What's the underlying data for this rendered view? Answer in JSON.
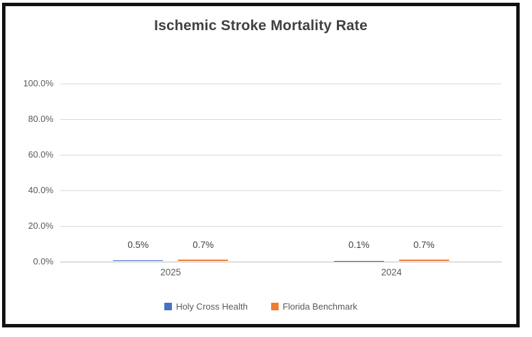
{
  "chart_data": {
    "type": "bar",
    "title": "Ischemic Stroke Mortality Rate",
    "categories": [
      "2025",
      "2024"
    ],
    "series": [
      {
        "name": "Holy Cross Health",
        "color": "#4472C4",
        "values": [
          0.5,
          0.1
        ],
        "data_labels": [
          "0.5%",
          "0.1%"
        ]
      },
      {
        "name": "Florida Benchmark",
        "color": "#ED7D31",
        "values": [
          0.7,
          0.7
        ],
        "data_labels": [
          "0.7%",
          "0.7%"
        ]
      }
    ],
    "y_ticks": [
      {
        "value": 100,
        "label": "100.0%"
      },
      {
        "value": 80,
        "label": "80.0%"
      },
      {
        "value": 60,
        "label": "60.0%"
      },
      {
        "value": 40,
        "label": "40.0%"
      },
      {
        "value": 20,
        "label": "20.0%"
      },
      {
        "value": 0,
        "label": "0.0%"
      }
    ],
    "ylim": [
      0,
      100
    ],
    "xlabel": "",
    "ylabel": "",
    "grid": true,
    "legend_position": "bottom"
  },
  "styles": {
    "frame_border_color": "#121212",
    "background_color": "#FFFFFF",
    "title_color": "#404040",
    "axis_label_color": "#595959",
    "data_label_color": "#404040",
    "gridline_color": "#D9D9D9",
    "axis_line_color": "#BFBFBF"
  }
}
